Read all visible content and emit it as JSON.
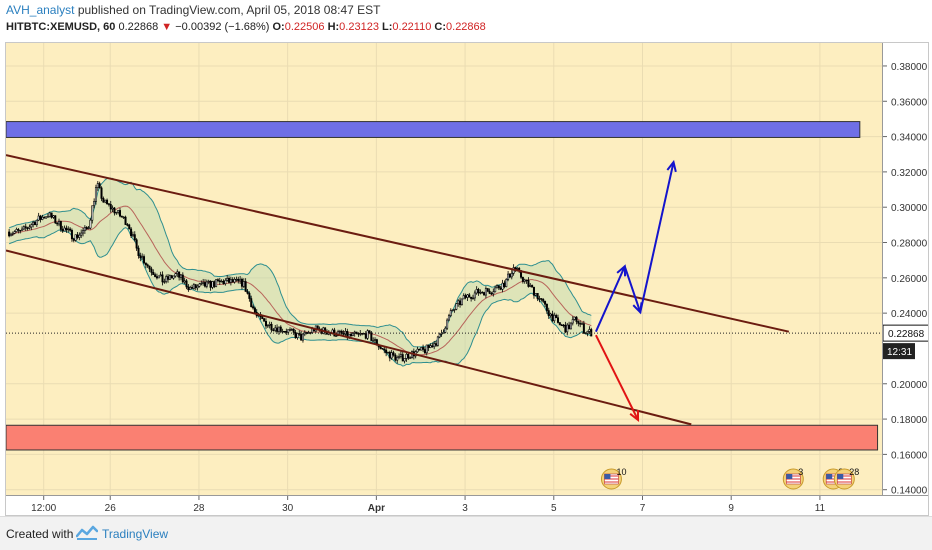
{
  "header": {
    "author": "AVH_analyst",
    "published_text": "published on TradingView.com, April 05, 2018 08:47 EST"
  },
  "symbol_bar": {
    "symbol": "HITBTC:XEMUSD, 60",
    "last": "0.22868",
    "change_arrow": "▼",
    "change": "−0.00392 (−1.68%)",
    "open_label": "O:",
    "open": "0.22506",
    "high_label": "H:",
    "high": "0.23123",
    "low_label": "L:",
    "low": "0.22110",
    "close_label": "C:",
    "close": "0.22868"
  },
  "price_axis": {
    "current_price": "0.22868",
    "countdown": "12:31"
  },
  "footer": {
    "created_with": "Created with",
    "brand": "TradingView"
  },
  "colors": {
    "background": "#fdeec0",
    "channel": "#6b1c10",
    "blue_zone": "#6f6fe6",
    "red_zone": "#fa8072",
    "arrow_up": "#1414cc",
    "arrow_down": "#e11414",
    "bollinger": "#2f8f8f",
    "ma": "#b8645a"
  },
  "chart_data": {
    "type": "candlestick",
    "symbol": "HITBTC:XEMUSD, 60",
    "y_range": [
      0.137,
      0.393
    ],
    "y_ticks": [
      0.14,
      0.16,
      0.18,
      0.2,
      0.24,
      0.26,
      0.28,
      0.3,
      0.32,
      0.34,
      0.36,
      0.38
    ],
    "y_tick_labels": [
      "0.14000",
      "0.16000",
      "0.18000",
      "0.20000",
      "0.24000",
      "0.26000",
      "0.28000",
      "0.30000",
      "0.32000",
      "0.34000",
      "0.36000",
      "0.38000"
    ],
    "x_ticks": [
      {
        "label": "12:00",
        "day": 24.5
      },
      {
        "label": "26",
        "day": 26
      },
      {
        "label": "28",
        "day": 28
      },
      {
        "label": "30",
        "day": 30
      },
      {
        "label": "Apr",
        "day": 32
      },
      {
        "label": "3",
        "day": 34
      },
      {
        "label": "5",
        "day": 36
      },
      {
        "label": "7",
        "day": 38
      },
      {
        "label": "9",
        "day": 40
      },
      {
        "label": "11",
        "day": 42
      }
    ],
    "x_units": "days since March 1, 2018 (hourly candles)",
    "price_path": [
      [
        24.0,
        0.286
      ],
      [
        24.3,
        0.292
      ],
      [
        24.6,
        0.296
      ],
      [
        24.9,
        0.289
      ],
      [
        25.2,
        0.283
      ],
      [
        25.5,
        0.288
      ],
      [
        25.7,
        0.313
      ],
      [
        25.85,
        0.303
      ],
      [
        26.1,
        0.298
      ],
      [
        26.4,
        0.291
      ],
      [
        26.6,
        0.276
      ],
      [
        26.9,
        0.265
      ],
      [
        27.2,
        0.258
      ],
      [
        27.5,
        0.262
      ],
      [
        27.8,
        0.254
      ],
      [
        28.2,
        0.256
      ],
      [
        28.6,
        0.258
      ],
      [
        29.0,
        0.257
      ],
      [
        29.3,
        0.238
      ],
      [
        29.6,
        0.233
      ],
      [
        30.0,
        0.23
      ],
      [
        30.3,
        0.226
      ],
      [
        30.6,
        0.231
      ],
      [
        31.0,
        0.229
      ],
      [
        31.4,
        0.227
      ],
      [
        31.8,
        0.228
      ],
      [
        32.2,
        0.218
      ],
      [
        32.5,
        0.214
      ],
      [
        32.8,
        0.217
      ],
      [
        33.1,
        0.219
      ],
      [
        33.4,
        0.225
      ],
      [
        33.7,
        0.241
      ],
      [
        34.0,
        0.249
      ],
      [
        34.3,
        0.252
      ],
      [
        34.6,
        0.253
      ],
      [
        34.9,
        0.257
      ],
      [
        35.1,
        0.266
      ],
      [
        35.35,
        0.258
      ],
      [
        35.6,
        0.251
      ],
      [
        35.9,
        0.24
      ],
      [
        36.1,
        0.234
      ],
      [
        36.3,
        0.231
      ],
      [
        36.5,
        0.237
      ],
      [
        36.7,
        0.23
      ],
      [
        36.85,
        0.229
      ]
    ],
    "channel_upper": [
      [
        23.65,
        0.3295
      ],
      [
        41.3,
        0.2295
      ]
    ],
    "channel_lower": [
      [
        23.65,
        0.2755
      ],
      [
        39.1,
        0.177
      ]
    ],
    "zones": [
      {
        "color": "blue",
        "y_from": 0.3395,
        "y_to": 0.3485,
        "x_from": 23.65,
        "x_to": 42.9
      },
      {
        "color": "red",
        "y_from": 0.1625,
        "y_to": 0.1765,
        "x_from": 23.65,
        "x_to": 43.3
      }
    ],
    "projection_up": [
      [
        36.95,
        0.2295
      ],
      [
        37.6,
        0.2665
      ],
      [
        37.95,
        0.2405
      ],
      [
        38.7,
        0.3255
      ]
    ],
    "projection_down": [
      [
        36.95,
        0.2275
      ],
      [
        37.9,
        0.1795
      ]
    ]
  }
}
